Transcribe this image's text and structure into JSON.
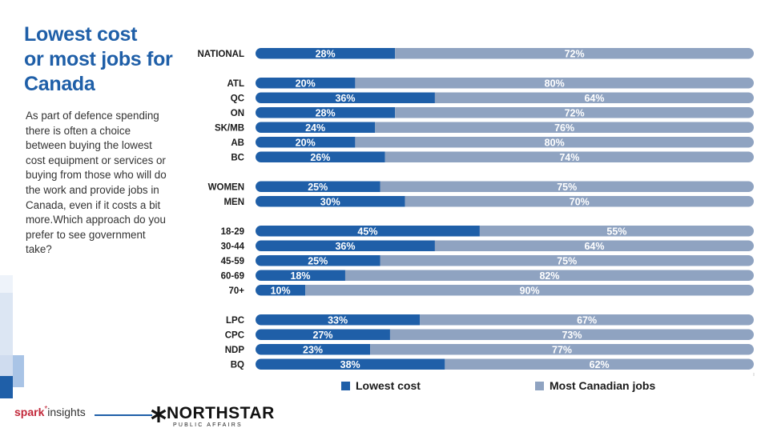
{
  "title_lines": [
    "Lowest cost",
    "or most jobs for",
    "Canada"
  ],
  "question": "As part of defence spending there is often a choice between buying the lowest cost equipment or services or buying from those who will do the work and provide jobs in Canada, even if it costs a bit more.Which approach do you prefer to see government take?",
  "colors": {
    "lowest": "#1f5fa8",
    "jobs": "#8fa3c1",
    "title": "#1f5fa8"
  },
  "chart_data": {
    "type": "bar",
    "orientation": "horizontal",
    "stacked": true,
    "categories": [
      "NATIONAL",
      "ATL",
      "QC",
      "ON",
      "SK/MB",
      "AB",
      "BC",
      "WOMEN",
      "MEN",
      "18-29",
      "30-44",
      "45-59",
      "60-69",
      "70+",
      "LPC",
      "CPC",
      "NDP",
      "BQ"
    ],
    "groups": [
      [
        0
      ],
      [
        1,
        2,
        3,
        4,
        5,
        6
      ],
      [
        7,
        8
      ],
      [
        9,
        10,
        11,
        12,
        13
      ],
      [
        14,
        15,
        16,
        17
      ]
    ],
    "series": [
      {
        "name": "Lowest cost",
        "values": [
          28,
          20,
          36,
          28,
          24,
          20,
          26,
          25,
          30,
          45,
          36,
          25,
          18,
          10,
          33,
          27,
          23,
          38
        ]
      },
      {
        "name": "Most Canadian jobs",
        "values": [
          72,
          80,
          64,
          72,
          76,
          80,
          74,
          75,
          70,
          55,
          64,
          75,
          82,
          90,
          67,
          73,
          77,
          62
        ]
      }
    ],
    "value_suffix": "%",
    "xlim": [
      0,
      100
    ],
    "legend_position": "bottom",
    "grid": false
  },
  "legend": {
    "lowest": "Lowest cost",
    "jobs": "Most Canadian jobs"
  },
  "footer": {
    "spark_part1": "spark",
    "spark_part2": "insights",
    "spark_star": "*",
    "northstar_name": "NORTHSTAR",
    "northstar_sub": "PUBLIC AFFAIRS"
  }
}
